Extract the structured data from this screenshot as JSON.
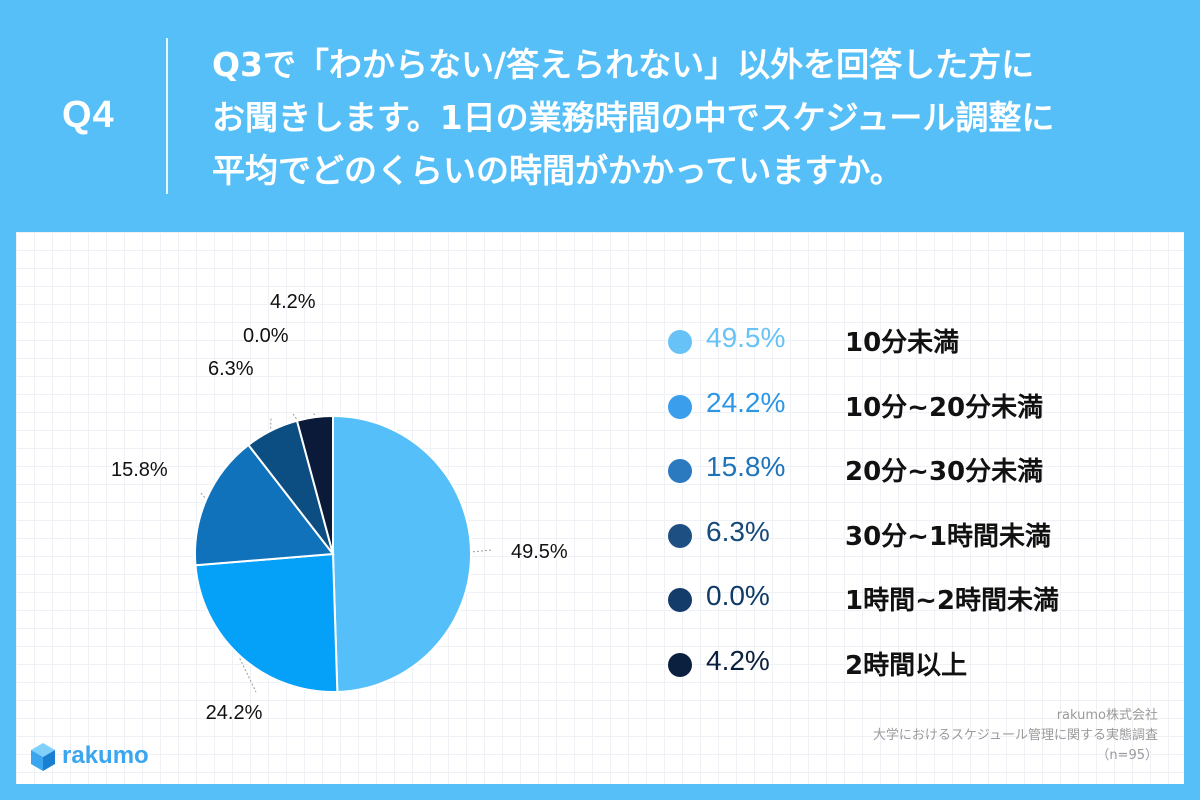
{
  "question": {
    "number": "Q4",
    "text": "Q3で「わからない/答えられない」以外を回答した方に\nお聞きします。1日の業務時間の中でスケジュール調整に\n平均でどのくらいの時間がかかっていますか。"
  },
  "chart_data": {
    "type": "pie",
    "categories": [
      "10分未満",
      "10分~20分未満",
      "20分~30分未満",
      "30分~1時間未満",
      "1時間~2時間未満",
      "2時間以上"
    ],
    "values": [
      49.5,
      24.2,
      15.8,
      6.3,
      0.0,
      4.2
    ],
    "labels": [
      "49.5%",
      "24.2%",
      "15.8%",
      "6.3%",
      "0.0%",
      "4.2%"
    ],
    "colors": [
      "#55bffa",
      "#05a0f8",
      "#1072bb",
      "#0c4d82",
      "#0a3358",
      "#0a1a38"
    ],
    "legend_text_colors": [
      "#67c3f7",
      "#2d97e6",
      "#1f73b8",
      "#16497a",
      "#0f3a66",
      "#0b1f3f"
    ],
    "legend_position": "right"
  },
  "legend": [
    {
      "pct": "49.5%",
      "label": "10分未満",
      "dot_color": "#67c3f7",
      "text_color": "#67c3f7"
    },
    {
      "pct": "24.2%",
      "label": "10分~20分未満",
      "dot_color": "#3a9eec",
      "text_color": "#2d97e6"
    },
    {
      "pct": "15.8%",
      "label": "20分~30分未満",
      "dot_color": "#2b79bf",
      "text_color": "#1f73b8"
    },
    {
      "pct": "6.3%",
      "label": "30分~1時間未満",
      "dot_color": "#1d4f82",
      "text_color": "#16497a"
    },
    {
      "pct": "0.0%",
      "label": "1時間~2時間未満",
      "dot_color": "#143c6a",
      "text_color": "#0f3a66"
    },
    {
      "pct": "4.2%",
      "label": "2時間以上",
      "dot_color": "#0b1f3f",
      "text_color": "#0b1f3f"
    }
  ],
  "logo": {
    "text": "rakumo"
  },
  "source": {
    "company": "rakumo株式会社",
    "survey": "大学におけるスケジュール管理に関する実態調査",
    "n": "（n=95）"
  }
}
